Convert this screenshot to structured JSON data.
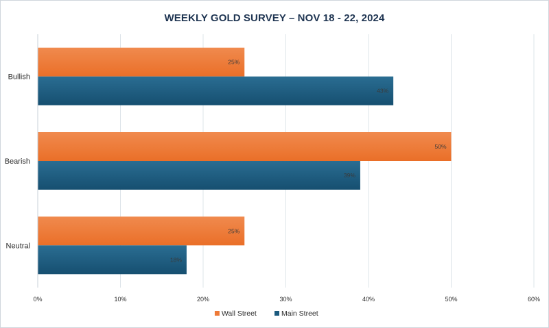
{
  "chart_data": {
    "type": "bar",
    "orientation": "horizontal",
    "title": "WEEKLY GOLD SURVEY – NOV 18 - 22, 2024",
    "categories": [
      "Bullish",
      "Bearish",
      "Neutral"
    ],
    "series": [
      {
        "name": "Wall Street",
        "values": [
          25,
          50,
          25
        ],
        "color": "#ee7a38"
      },
      {
        "name": "Main Street",
        "values": [
          43,
          39,
          18
        ],
        "color": "#1b5a7e"
      }
    ],
    "data_labels": [
      [
        "25%",
        "50%",
        "25%"
      ],
      [
        "43%",
        "39%",
        "18%"
      ]
    ],
    "xlim": [
      0,
      60
    ],
    "xticks": [
      "0%",
      "10%",
      "20%",
      "30%",
      "40%",
      "50%",
      "60%"
    ],
    "grid": true,
    "legend_position": "bottom"
  }
}
